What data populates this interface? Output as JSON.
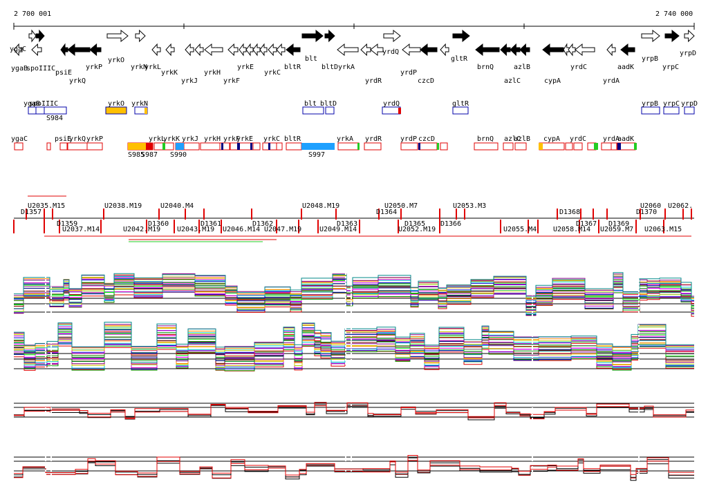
{
  "coords": {
    "start": "2 700 001",
    "end": "2 740 000"
  },
  "colors": {
    "black": "#000000",
    "red": "#e00000",
    "blue": "#0000aa",
    "orange": "#ffc000",
    "sky": "#1ea0ff",
    "navy": "#000080",
    "green": "#22cc22"
  },
  "genes_top": [
    {
      "name": "ygaB"
    },
    {
      "name": "ygaC"
    },
    {
      "name": "spoIIIC"
    },
    {
      "name": "psiE"
    },
    {
      "name": "yrkQ"
    },
    {
      "name": "yrkP"
    },
    {
      "name": "yrkO"
    },
    {
      "name": "yrkN"
    },
    {
      "name": "yrkL"
    },
    {
      "name": "yrkK"
    },
    {
      "name": "yrkJ"
    },
    {
      "name": "yrkH"
    },
    {
      "name": "yrkF"
    },
    {
      "name": "yrkE"
    },
    {
      "name": "yrkC"
    },
    {
      "name": "bltR"
    },
    {
      "name": "blt"
    },
    {
      "name": "bltD"
    },
    {
      "name": "yrkA"
    },
    {
      "name": "yrdR"
    },
    {
      "name": "yrdQ"
    },
    {
      "name": "yrdP"
    },
    {
      "name": "czcD"
    },
    {
      "name": "gltR"
    },
    {
      "name": "brnQ"
    },
    {
      "name": "azlC"
    },
    {
      "name": "azlB"
    },
    {
      "name": "cypA"
    },
    {
      "name": "yrdC"
    },
    {
      "name": "yrdA"
    },
    {
      "name": "aadK"
    },
    {
      "name": "yrpB"
    },
    {
      "name": "yrpC"
    },
    {
      "name": "yrpD"
    }
  ],
  "blue_row": [
    {
      "name": "ygaB"
    },
    {
      "name": "spoIIIC"
    },
    {
      "name": "yrkO"
    },
    {
      "name": "yrkN"
    },
    {
      "name": "blt"
    },
    {
      "name": "bltD"
    },
    {
      "name": "yrdQ"
    },
    {
      "name": "gltR"
    },
    {
      "name": "yrpB"
    },
    {
      "name": "yrpC"
    },
    {
      "name": "yrpD"
    }
  ],
  "red_row": [
    {
      "name": "ygaC"
    },
    {
      "name": "psiE"
    },
    {
      "name": "yrkQ"
    },
    {
      "name": "yrkP"
    },
    {
      "name": "yrkL"
    },
    {
      "name": "yrkK"
    },
    {
      "name": "yrkJ"
    },
    {
      "name": "yrkH"
    },
    {
      "name": "yrkF"
    },
    {
      "name": "yrkE"
    },
    {
      "name": "yrkC"
    },
    {
      "name": "bltR"
    },
    {
      "name": "yrkA"
    },
    {
      "name": "yrdR"
    },
    {
      "name": "yrdP"
    },
    {
      "name": "czcD"
    },
    {
      "name": "brnQ"
    },
    {
      "name": "azlC"
    },
    {
      "name": "azlB"
    },
    {
      "name": "cypA"
    },
    {
      "name": "yrdC"
    },
    {
      "name": "yrdA"
    },
    {
      "name": "aadK"
    }
  ],
  "sregions": [
    {
      "name": "S984"
    },
    {
      "name": "S985"
    },
    {
      "name": "S987"
    },
    {
      "name": "S990"
    },
    {
      "name": "S997"
    }
  ],
  "features_upper": [
    {
      "name": "U2035.M15"
    },
    {
      "name": "U2038.M19"
    },
    {
      "name": "U2040.M4"
    },
    {
      "name": "U2048.M19"
    },
    {
      "name": "U2050.M7"
    },
    {
      "name": "U2053.M3"
    },
    {
      "name": "U2060"
    },
    {
      "name": "U2062."
    },
    {
      "name": "D1357"
    },
    {
      "name": "D1364"
    },
    {
      "name": "D1368"
    },
    {
      "name": "D1370"
    }
  ],
  "features_lower": [
    {
      "name": "U2037.M14"
    },
    {
      "name": "U2042.M19"
    },
    {
      "name": "U2043.M19"
    },
    {
      "name": "U2046.M14"
    },
    {
      "name": "U2047.M19"
    },
    {
      "name": "U2049.M14"
    },
    {
      "name": "U2052.M19"
    },
    {
      "name": "U2055.M4"
    },
    {
      "name": "U2058.M14"
    },
    {
      "name": "U2059.M7"
    },
    {
      "name": "U2063.M15"
    },
    {
      "name": "D1359"
    },
    {
      "name": "D1360"
    },
    {
      "name": "D1361"
    },
    {
      "name": "D1362"
    },
    {
      "name": "D1363"
    },
    {
      "name": "D1365"
    },
    {
      "name": "D1366"
    },
    {
      "name": "D1367"
    },
    {
      "name": "D1369"
    }
  ]
}
